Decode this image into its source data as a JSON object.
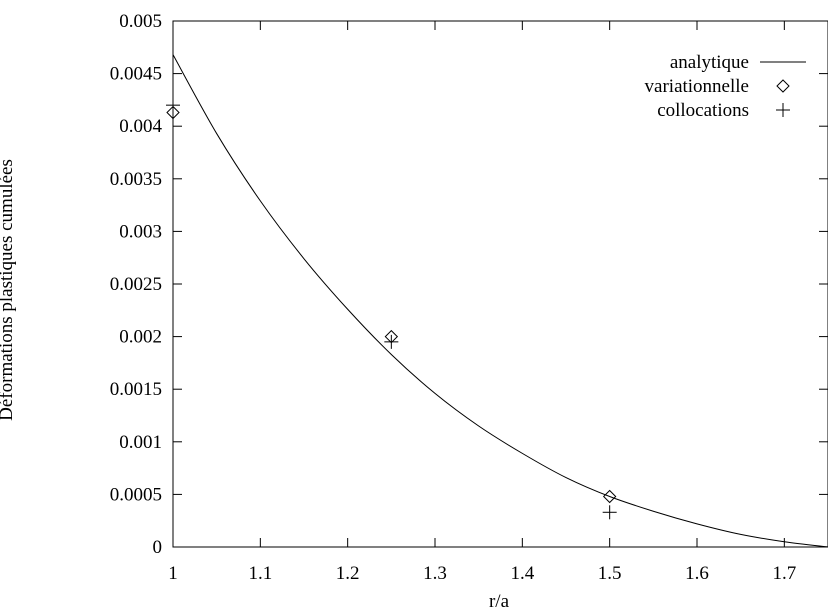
{
  "chart_data": {
    "type": "scatter",
    "xlabel": "r/a",
    "ylabel": "Déformations plastiques cumulées",
    "xlim": [
      1,
      1.75
    ],
    "ylim": [
      0,
      0.005
    ],
    "xticks": [
      "1",
      "1.1",
      "1.2",
      "1.3",
      "1.4",
      "1.5",
      "1.6",
      "1.7"
    ],
    "xtick_values": [
      1,
      1.1,
      1.2,
      1.3,
      1.4,
      1.5,
      1.6,
      1.7
    ],
    "yticks": [
      "0",
      "0.0005",
      "0.001",
      "0.0015",
      "0.002",
      "0.0025",
      "0.003",
      "0.0035",
      "0.004",
      "0.0045",
      "0.005"
    ],
    "ytick_values": [
      0,
      0.0005,
      0.001,
      0.0015,
      0.002,
      0.0025,
      0.003,
      0.0035,
      0.004,
      0.0045,
      0.005
    ],
    "grid": false,
    "legend_position": "top-right",
    "series": [
      {
        "name": "analytique",
        "style": "line",
        "x": [
          1.0,
          1.05,
          1.1,
          1.15,
          1.2,
          1.25,
          1.3,
          1.35,
          1.4,
          1.45,
          1.5,
          1.55,
          1.6,
          1.65,
          1.7,
          1.75
        ],
        "y": [
          0.00468,
          0.00393,
          0.00329,
          0.00274,
          0.00226,
          0.00183,
          0.00146,
          0.00115,
          0.00089,
          0.00066,
          0.00048,
          0.00034,
          0.00022,
          0.00012,
          5e-05,
          0.0
        ]
      },
      {
        "name": "variationnelle",
        "style": "diamond",
        "x": [
          1.0,
          1.25,
          1.5
        ],
        "y": [
          0.00413,
          0.002,
          0.00048
        ]
      },
      {
        "name": "collocations",
        "style": "plus",
        "x": [
          1.0,
          1.25,
          1.5
        ],
        "y": [
          0.0042,
          0.00195,
          0.00033
        ]
      }
    ]
  }
}
